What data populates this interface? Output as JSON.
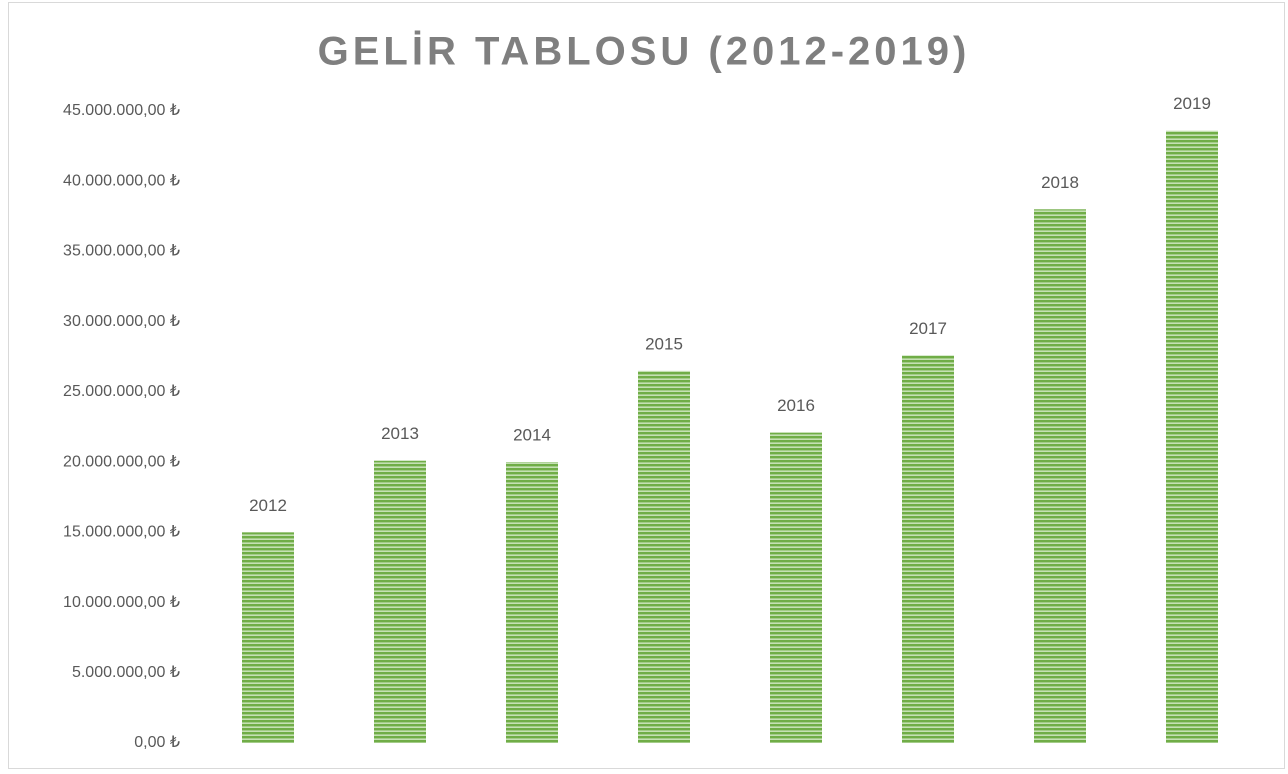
{
  "chart_data": {
    "type": "bar",
    "title": "GELİR TABLOSU (2012-2019)",
    "categories": [
      "2012",
      "2013",
      "2014",
      "2015",
      "2016",
      "2017",
      "2018",
      "2019"
    ],
    "values": [
      15000000,
      20100000,
      20000000,
      26500000,
      22100000,
      27600000,
      38000000,
      43600000
    ],
    "color": "#70ad47",
    "ylim": [
      0,
      45000000
    ],
    "yticks": [
      {
        "value": 0,
        "label": "0,00 ₺"
      },
      {
        "value": 5000000,
        "label": "5.000.000,00 ₺"
      },
      {
        "value": 10000000,
        "label": "10.000.000,00 ₺"
      },
      {
        "value": 15000000,
        "label": "15.000.000,00 ₺"
      },
      {
        "value": 20000000,
        "label": "20.000.000,00 ₺"
      },
      {
        "value": 25000000,
        "label": "25.000.000,00 ₺"
      },
      {
        "value": 30000000,
        "label": "30.000.000,00 ₺"
      },
      {
        "value": 35000000,
        "label": "35.000.000,00 ₺"
      },
      {
        "value": 40000000,
        "label": "40.000.000,00 ₺"
      },
      {
        "value": 45000000,
        "label": "45.000.000,00 ₺"
      }
    ],
    "grid": false
  }
}
